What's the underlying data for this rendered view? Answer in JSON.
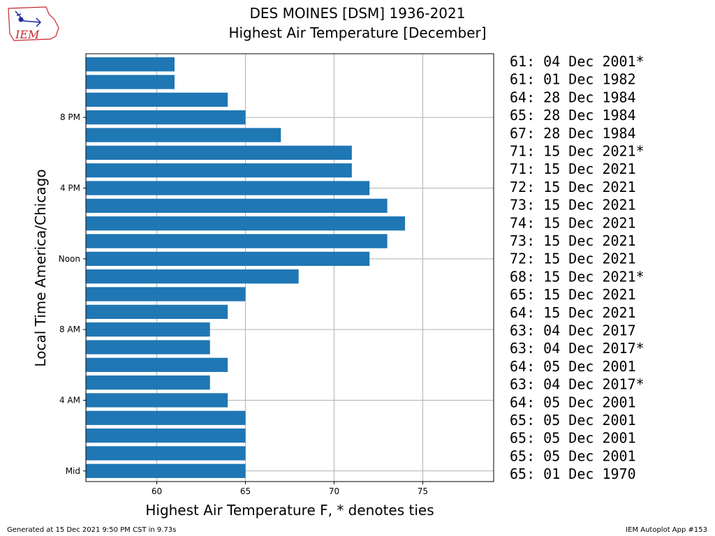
{
  "header": {
    "title_line1": "DES MOINES [DSM] 1936-2021",
    "title_line2": "Highest Air Temperature [December]"
  },
  "logo": {
    "text": "IEM"
  },
  "footer": {
    "left": "Generated at 15 Dec 2021 9:50 PM CST in 9.73s",
    "right": "IEM Autoplot App #153"
  },
  "colors": {
    "bar": "#1f77b4",
    "grid": "#b0b0b0",
    "logo": "#c0282d",
    "logo_accent": "#1f2aa0"
  },
  "chart_data": {
    "type": "bar",
    "orientation": "horizontal",
    "xlabel": "Highest Air Temperature F, * denotes ties",
    "ylabel": "Local Time America/Chicago",
    "xlim": [
      56,
      79
    ],
    "xticks": [
      60,
      65,
      70,
      75
    ],
    "grid": true,
    "hours": [
      0,
      1,
      2,
      3,
      4,
      5,
      6,
      7,
      8,
      9,
      10,
      11,
      12,
      13,
      14,
      15,
      16,
      17,
      18,
      19,
      20,
      21,
      22,
      23
    ],
    "yticks": [
      {
        "hour": 0,
        "label": "Mid"
      },
      {
        "hour": 4,
        "label": "4 AM"
      },
      {
        "hour": 8,
        "label": "8 AM"
      },
      {
        "hour": 12,
        "label": "Noon"
      },
      {
        "hour": 16,
        "label": "4 PM"
      },
      {
        "hour": 20,
        "label": "8 PM"
      }
    ],
    "values": [
      65,
      65,
      65,
      65,
      64,
      63,
      64,
      63,
      63,
      64,
      65,
      68,
      72,
      73,
      74,
      73,
      72,
      71,
      71,
      67,
      65,
      64,
      61,
      61
    ],
    "records": [
      "65: 01 Dec 1970",
      "65: 05 Dec 2001",
      "65: 05 Dec 2001",
      "65: 05 Dec 2001",
      "64: 05 Dec 2001",
      "63: 04 Dec 2017*",
      "64: 05 Dec 2001",
      "63: 04 Dec 2017*",
      "63: 04 Dec 2017",
      "64: 15 Dec 2021",
      "65: 15 Dec 2021",
      "68: 15 Dec 2021*",
      "72: 15 Dec 2021",
      "73: 15 Dec 2021",
      "74: 15 Dec 2021",
      "73: 15 Dec 2021",
      "72: 15 Dec 2021",
      "71: 15 Dec 2021",
      "71: 15 Dec 2021*",
      "67: 28 Dec 1984",
      "65: 28 Dec 1984",
      "64: 28 Dec 1984",
      "61: 01 Dec 1982",
      "61: 04 Dec 2001*"
    ]
  }
}
